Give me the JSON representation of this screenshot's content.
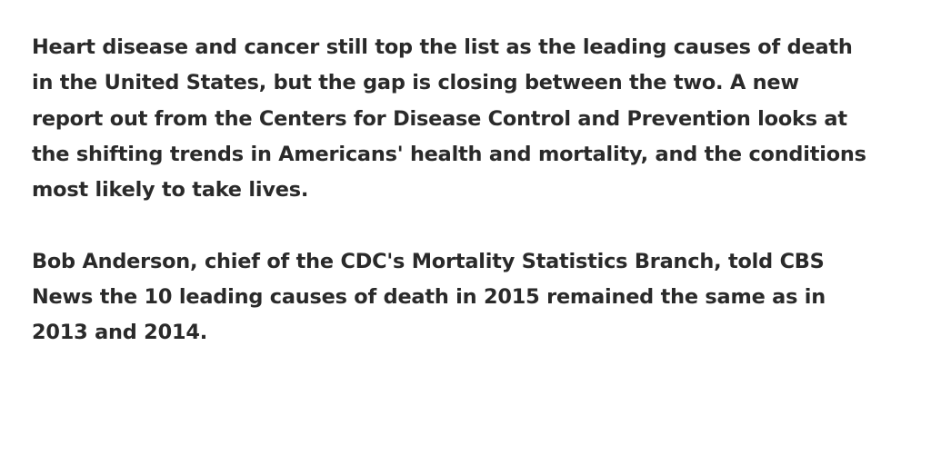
{
  "paragraphs": [
    {
      "lines": [
        "Heart disease and cancer still top the list as the leading causes of death",
        "in the United States, but the gap is closing between the two. A new",
        "report out from the Centers for Disease Control and Prevention looks at",
        "the shifting trends in Americans' health and mortality, and the conditions",
        "most likely to take lives."
      ]
    },
    {
      "lines": [
        "Bob Anderson, chief of the CDC's Mortality Statistics Branch, told CBS",
        "News the 10 leading causes of death in 2015 remained the same as in",
        "2013 and 2014."
      ]
    }
  ]
}
